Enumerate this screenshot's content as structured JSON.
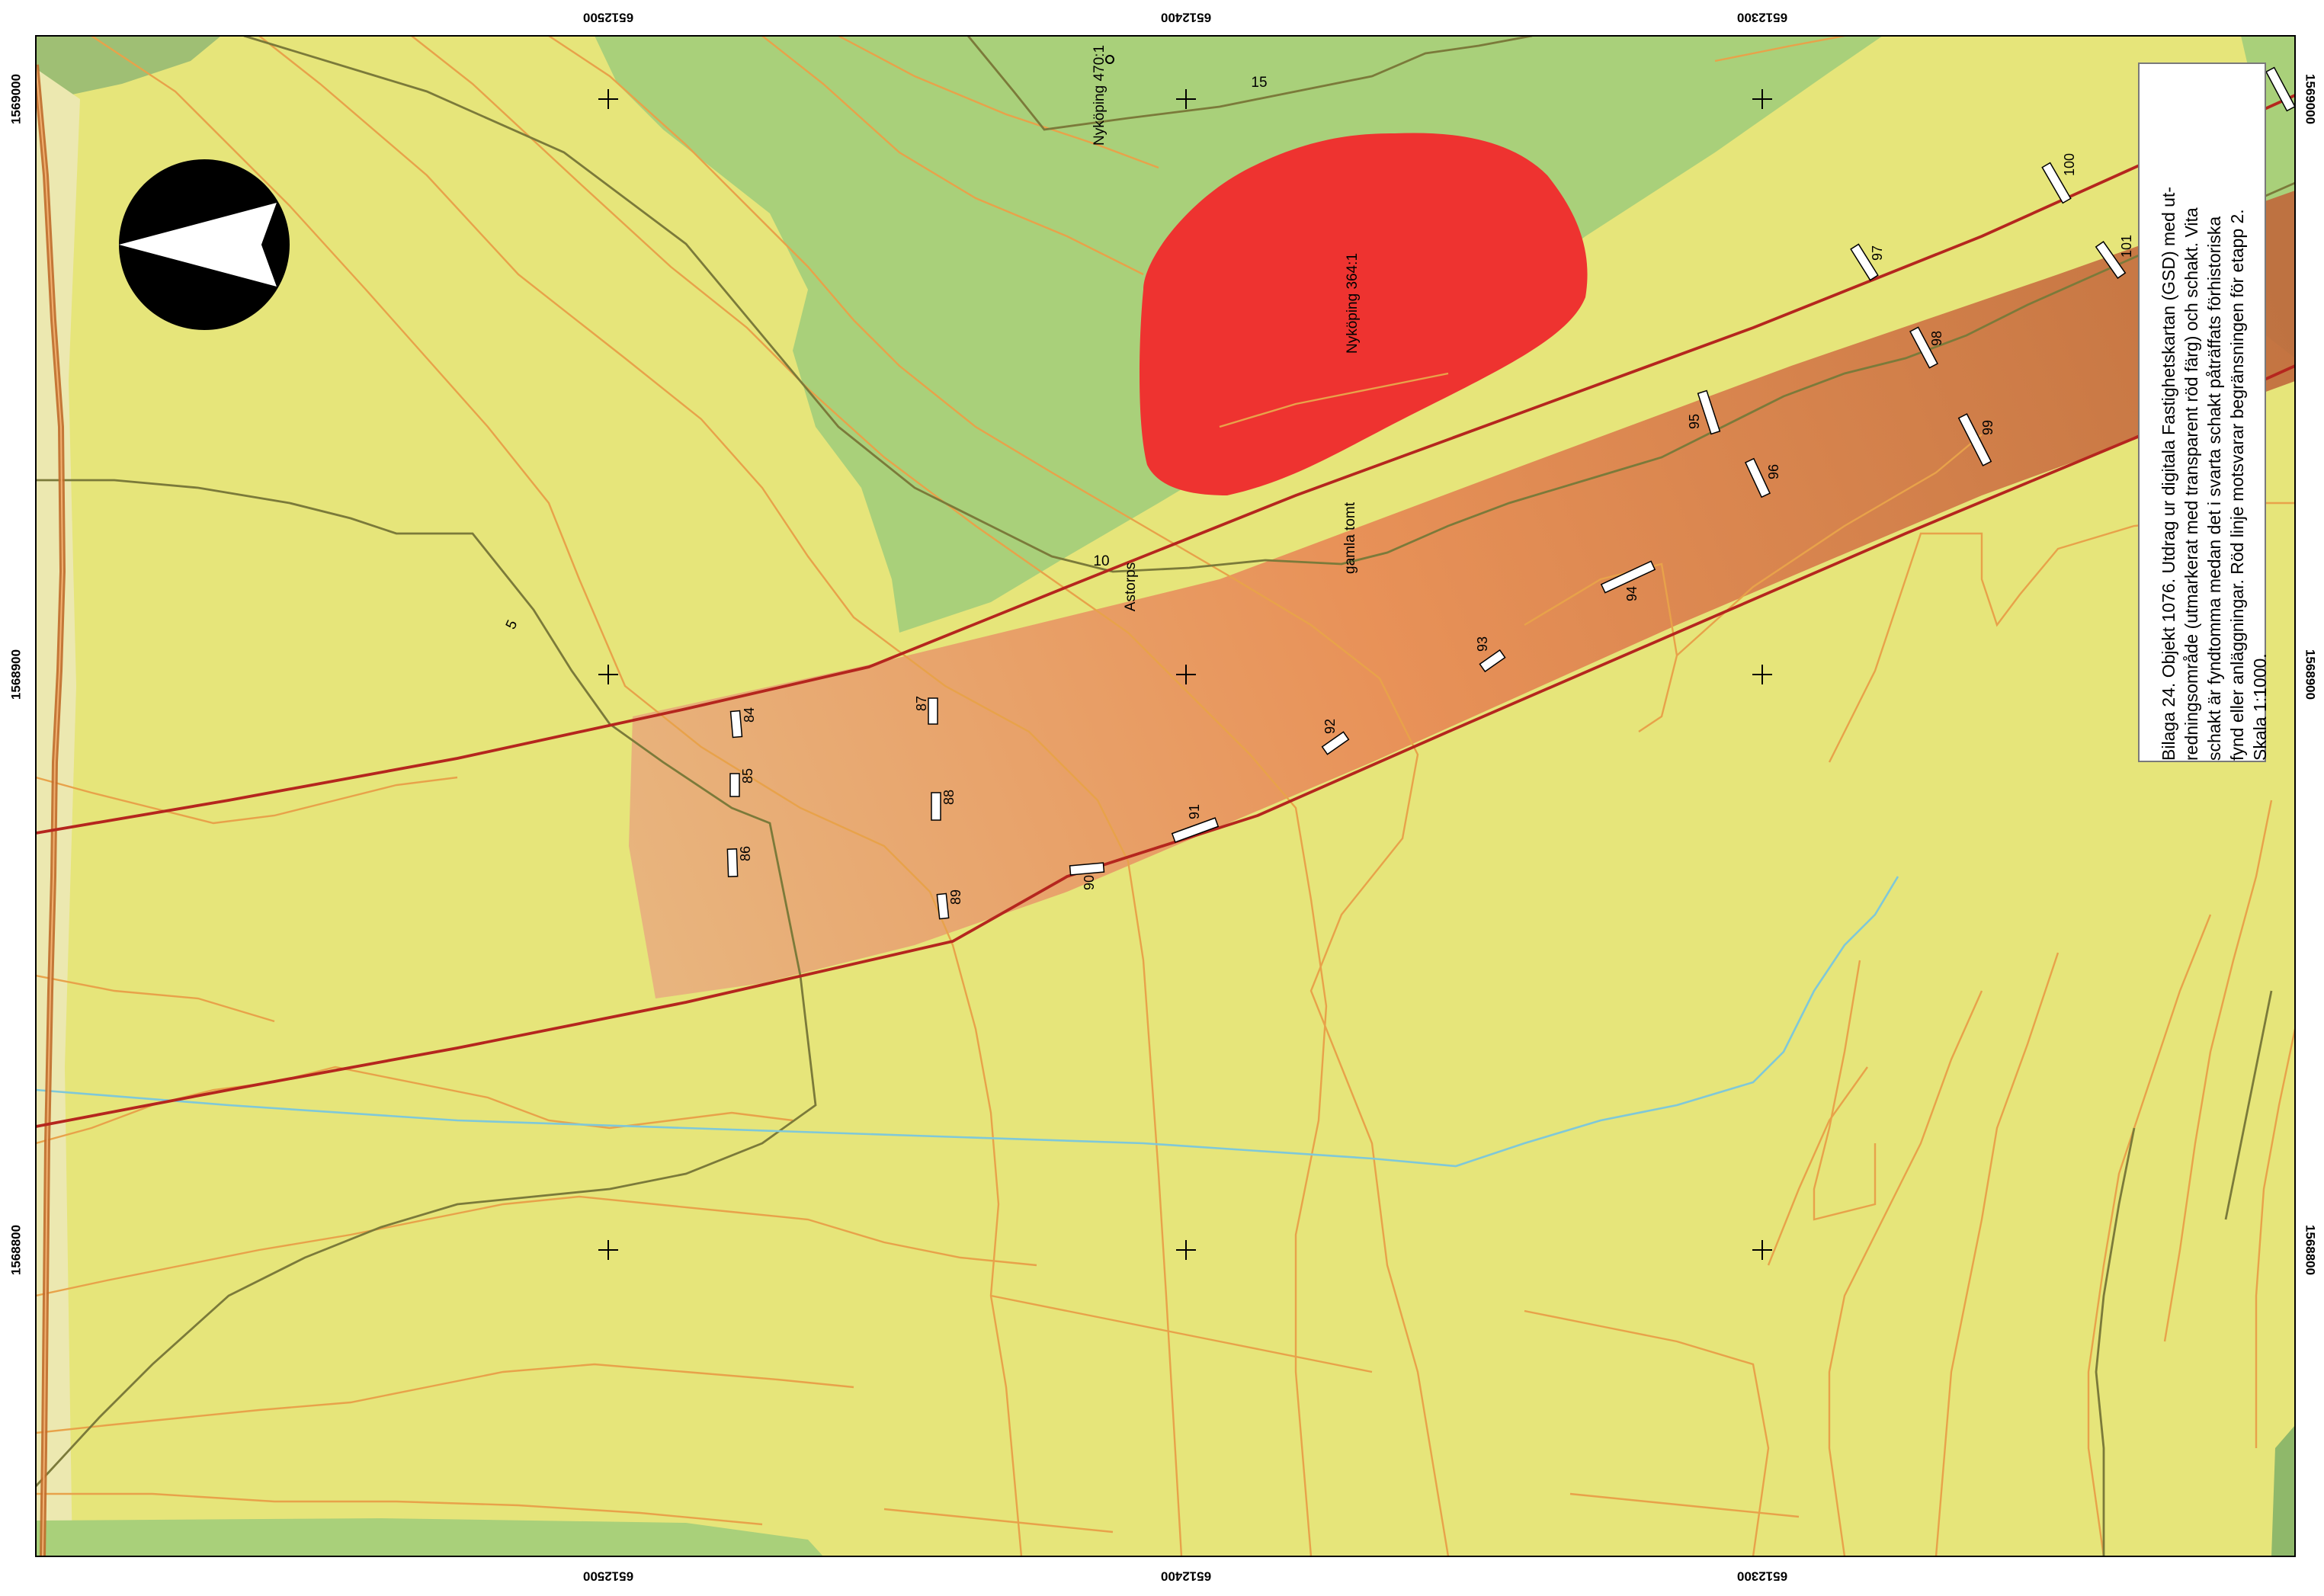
{
  "map": {
    "colors": {
      "field": "#e6e57a",
      "forest": "#a9d07a",
      "forest_dark": "#8fb86a",
      "contour_minor": "#e8a24a",
      "contour_major": "#7b7a3a",
      "road": "#c06a2a",
      "boundary": "#b5261e",
      "fornlamning": "#ee3330",
      "stream": "#7fc8d8",
      "trench_fill": "#ffffff"
    },
    "coords": {
      "top": [
        "6512500",
        "6512400",
        "6512300"
      ],
      "bottom": [
        "6512500",
        "6512400",
        "6512300"
      ],
      "left": [
        "1569000",
        "1568900",
        "1568800"
      ],
      "right": [
        "1569000",
        "1568900",
        "1568800"
      ]
    },
    "labels": {
      "site_470": "Nyköping 470:1",
      "site_364": "Nyköping 364:1",
      "gamla_tomt": "gamla tomt",
      "astorps": "Astorps",
      "contour_15": "15",
      "contour_10": "10",
      "contour_5": "5"
    },
    "trenches": [
      "84",
      "85",
      "86",
      "87",
      "88",
      "89",
      "90",
      "91",
      "92",
      "93",
      "94",
      "95",
      "96",
      "97",
      "98",
      "99",
      "100",
      "101"
    ],
    "north_arrow": "north-arrow-icon",
    "caption": {
      "lines": [
        "Bilaga 24. Objekt 1076. Utdrag ur digitala Fastighetskartan (GSD) med ut-",
        "redningsområde (utmarkerat med transparent röd färg) och schakt. Vita",
        "schakt är fyndtomma medan det i svarta schakt påträffats förhistoriska",
        "fynd eller anläggningar.  Röd linje motsvarar begränsningen för etapp 2.",
        "Skala 1:1000."
      ]
    }
  }
}
